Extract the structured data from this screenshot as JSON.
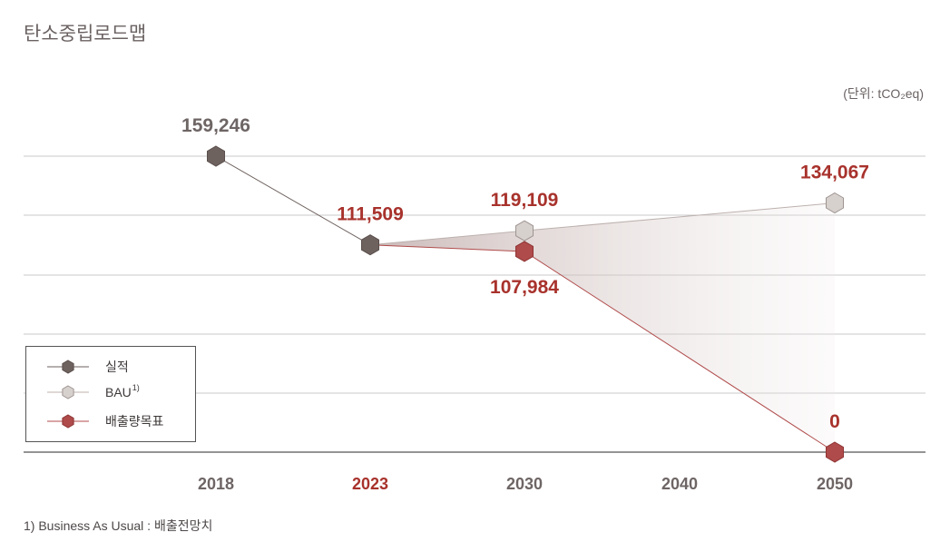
{
  "title": "탄소중립로드맵",
  "unit": "(단위: tCO₂eq)",
  "footnote": "1) Business As Usual : 배출전망치",
  "colors": {
    "actual": "#6e625f",
    "bau": "#d7d1ce",
    "target": "#b04b4b",
    "label_red": "#a8322c",
    "label_gray": "#6e6565",
    "grid": "#c9c9c9"
  },
  "chart_data": {
    "type": "line",
    "title": "탄소중립로드맵",
    "ylabel": "",
    "xlabel": "",
    "x": [
      "2018",
      "2023",
      "2030",
      "2040",
      "2050"
    ],
    "xtick_colors": [
      "gray",
      "red",
      "gray",
      "gray",
      "gray"
    ],
    "ylim": [
      0,
      160000
    ],
    "grid": true,
    "legend_position": "bottom-left",
    "series": [
      {
        "name": "실적",
        "color_key": "actual",
        "points": [
          {
            "x": "2018",
            "y": 159246
          },
          {
            "x": "2023",
            "y": 111509
          }
        ]
      },
      {
        "name": "BAU",
        "superscript": "1)",
        "color_key": "bau",
        "points": [
          {
            "x": "2023",
            "y": 111509
          },
          {
            "x": "2030",
            "y": 119109
          },
          {
            "x": "2050",
            "y": 134067
          }
        ]
      },
      {
        "name": "배출량목표",
        "color_key": "target",
        "points": [
          {
            "x": "2023",
            "y": 111509
          },
          {
            "x": "2030",
            "y": 107984
          },
          {
            "x": "2050",
            "y": 0
          }
        ]
      }
    ],
    "data_labels": [
      {
        "text": "159,246",
        "x": "2018",
        "y": 159246,
        "color": "gray",
        "pos": "above"
      },
      {
        "text": "111,509",
        "x": "2023",
        "y": 111509,
        "color": "red",
        "pos": "above"
      },
      {
        "text": "119,109",
        "x": "2030",
        "y": 119109,
        "color": "red",
        "pos": "above"
      },
      {
        "text": "134,067",
        "x": "2050",
        "y": 134067,
        "color": "red",
        "pos": "above"
      },
      {
        "text": "107,984",
        "x": "2030",
        "y": 107984,
        "color": "red",
        "pos": "below"
      },
      {
        "text": "0",
        "x": "2050",
        "y": 0,
        "color": "red",
        "pos": "above"
      }
    ]
  }
}
